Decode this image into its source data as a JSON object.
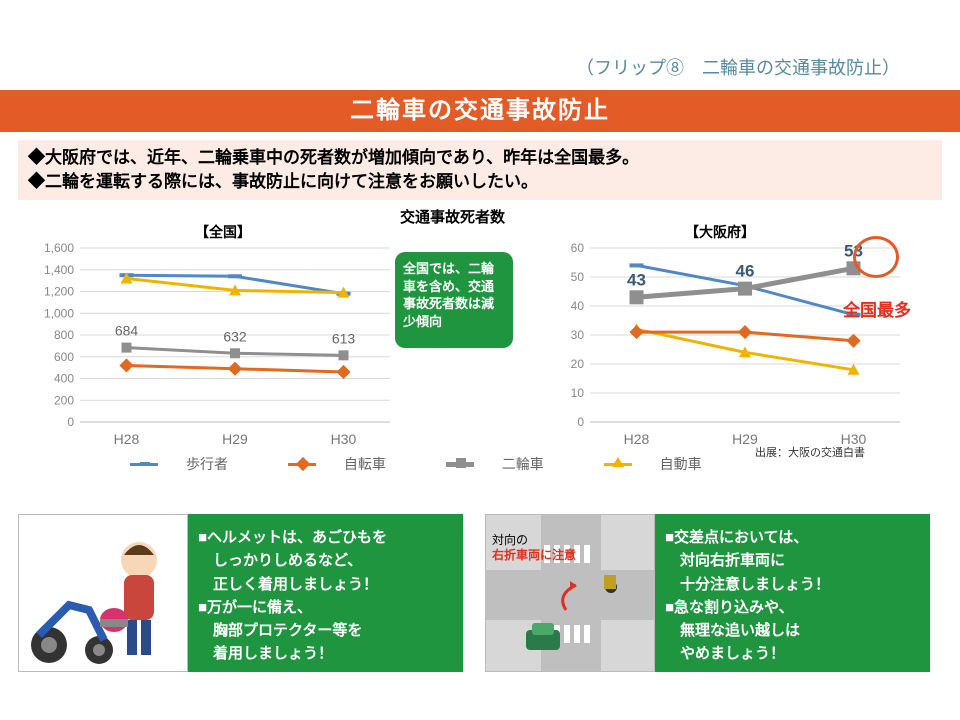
{
  "flip_label": "（フリップ⑧　二輪車の交通事故防止）",
  "title": "二輪車の交通事故防止",
  "summary": {
    "line1": "◆大阪府では、近年、二輪乗車中の死者数が増加傾向であり、昨年は全国最多。",
    "line2": "◆二輪を運転する際には、事故防止に向けて注意をお願いしたい。"
  },
  "charts_center_title": "交通事故死者数",
  "chart_national": {
    "label": "【全国】",
    "type": "line",
    "categories": [
      "H28",
      "H29",
      "H30"
    ],
    "ylim": [
      0,
      1600
    ],
    "yticks": [
      0,
      200,
      400,
      600,
      800,
      1000,
      1200,
      1400,
      1600
    ],
    "series": {
      "pedestrian": {
        "label": "歩行者",
        "values": [
          1350,
          1340,
          1180
        ],
        "color": "#4f88c6",
        "line_width": 3,
        "marker": "dash"
      },
      "bicycle": {
        "label": "自転車",
        "values": [
          520,
          490,
          460
        ],
        "color": "#e06a1f",
        "line_width": 3,
        "marker": "diamond"
      },
      "motorcycle": {
        "label": "二輪車",
        "values": [
          684,
          632,
          613
        ],
        "color": "#8f8f8f",
        "line_width": 3,
        "marker": "square",
        "data_labels": [
          "684",
          "632",
          "613"
        ]
      },
      "car": {
        "label": "自動車",
        "values": [
          1320,
          1210,
          1190
        ],
        "color": "#f0b400",
        "line_width": 3,
        "marker": "triangle"
      }
    },
    "background_color": "#ffffff",
    "grid_color": "#d9d9d9",
    "axis_fontsize": 12
  },
  "chart_osaka": {
    "label": "【大阪府】",
    "type": "line",
    "categories": [
      "H28",
      "H29",
      "H30"
    ],
    "ylim": [
      0,
      60
    ],
    "yticks": [
      0,
      10,
      20,
      30,
      40,
      50,
      60
    ],
    "series": {
      "pedestrian": {
        "label": "歩行者",
        "values": [
          54,
          47,
          37
        ],
        "color": "#4f88c6",
        "line_width": 3,
        "marker": "dash"
      },
      "bicycle": {
        "label": "自転車",
        "values": [
          31,
          31,
          28
        ],
        "color": "#e06a1f",
        "line_width": 3,
        "marker": "diamond"
      },
      "motorcycle": {
        "label": "二輪車",
        "values": [
          43,
          46,
          53
        ],
        "color": "#8f8f8f",
        "line_width": 5,
        "marker": "square",
        "data_labels": [
          "43",
          "46",
          "53"
        ],
        "highlight_index": 2
      },
      "car": {
        "label": "自動車",
        "values": [
          32,
          24,
          18
        ],
        "color": "#f0b400",
        "line_width": 3,
        "marker": "triangle"
      }
    },
    "highlight_text": "全国最多",
    "highlight_color": "#e03020",
    "source": "出展：大阪の交通白書",
    "background_color": "#ffffff",
    "grid_color": "#d9d9d9",
    "axis_fontsize": 12
  },
  "callout_text": "全国では、二輪車を含め、交通事故死者数は減少傾向",
  "legend": {
    "pedestrian": "歩行者",
    "bicycle": "自転車",
    "motorcycle": "二輪車",
    "car": "自動車"
  },
  "tips": {
    "left": {
      "img_caption": "",
      "lines": "■ヘルメットは、あごひもを\n　しっかりしめるなど、\n　正しく着用しましょう！\n■万が一に備え、\n　胸部プロテクター等を\n　着用しましょう！"
    },
    "right": {
      "img_caption": "対向の\n右折車両に注意",
      "lines": "■交差点においては、\n　対向右折車両に\n　十分注意しましょう！\n■急な割り込みや、\n　無理な追い越しは\n　やめましょう！"
    }
  },
  "colors": {
    "title_bar": "#e35b26",
    "summary_bg": "#fdece5",
    "callout_bg": "#1e953e",
    "info_bg": "#1e953e"
  }
}
